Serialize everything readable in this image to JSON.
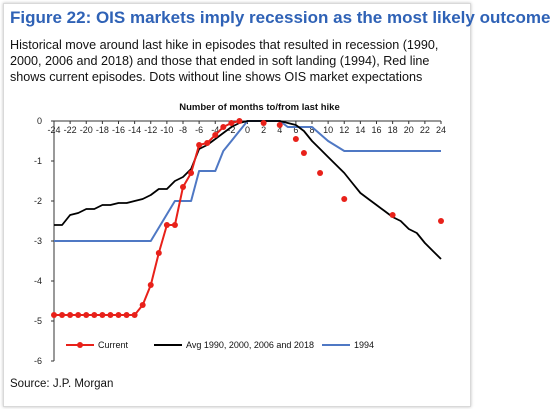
{
  "figure": {
    "title": "Figure 22: OIS markets imply recession as the most likely outcome",
    "subtitle": "Historical move around last hike in episodes that resulted in recession (1990, 2000, 2006 and 2018) and those that ended in soft landing (1994), Red line shows current episodes. Dots without line shows OIS market expectations",
    "source": "Source: J.P. Morgan"
  },
  "colors": {
    "title": "#2f62b6",
    "current": "#e8211a",
    "avg": "#000000",
    "soft": "#4f78c4"
  },
  "chart_data": {
    "type": "line",
    "title": "",
    "xlabel": "Number of months to/from last hike",
    "ylabel": "",
    "xlim": [
      -24,
      24
    ],
    "ylim": [
      -6,
      0
    ],
    "x_ticks": [
      -24,
      -22,
      -20,
      -18,
      -16,
      -14,
      -12,
      -10,
      -8,
      -6,
      -4,
      -2,
      0,
      2,
      4,
      6,
      8,
      10,
      12,
      14,
      16,
      18,
      20,
      22,
      24
    ],
    "y_ticks": [
      0,
      -1,
      -2,
      -3,
      -4,
      -5,
      -6
    ],
    "grid": false,
    "legend": "bottom",
    "series": [
      {
        "name": "Current",
        "style": "line-markers",
        "points": [
          [
            -24,
            -4.85
          ],
          [
            -23,
            -4.85
          ],
          [
            -22,
            -4.85
          ],
          [
            -21,
            -4.85
          ],
          [
            -20,
            -4.85
          ],
          [
            -19,
            -4.85
          ],
          [
            -18,
            -4.85
          ],
          [
            -17,
            -4.85
          ],
          [
            -16,
            -4.85
          ],
          [
            -15,
            -4.85
          ],
          [
            -14,
            -4.85
          ],
          [
            -13,
            -4.6
          ],
          [
            -12,
            -4.1
          ],
          [
            -11,
            -3.3
          ],
          [
            -10,
            -2.6
          ],
          [
            -9,
            -2.6
          ],
          [
            -8,
            -1.65
          ],
          [
            -7,
            -1.3
          ],
          [
            -6,
            -0.6
          ],
          [
            -5,
            -0.55
          ],
          [
            -4,
            -0.35
          ],
          [
            -3,
            -0.15
          ],
          [
            -2,
            -0.05
          ],
          [
            -1,
            0
          ]
        ]
      },
      {
        "name": "",
        "style": "markers",
        "points": [
          [
            2,
            -0.05
          ],
          [
            4,
            -0.1
          ],
          [
            6,
            -0.45
          ],
          [
            7,
            -0.8
          ],
          [
            9,
            -1.3
          ],
          [
            12,
            -1.95
          ],
          [
            18,
            -2.35
          ],
          [
            24,
            -2.5
          ]
        ]
      },
      {
        "name": "Avg 1990, 2000, 2006 and 2018",
        "style": "line",
        "points": [
          [
            -24,
            -2.6
          ],
          [
            -23,
            -2.6
          ],
          [
            -22,
            -2.35
          ],
          [
            -21,
            -2.3
          ],
          [
            -20,
            -2.2
          ],
          [
            -19,
            -2.2
          ],
          [
            -18,
            -2.1
          ],
          [
            -17,
            -2.1
          ],
          [
            -16,
            -2.05
          ],
          [
            -15,
            -2.05
          ],
          [
            -14,
            -2.0
          ],
          [
            -13,
            -1.95
          ],
          [
            -12,
            -1.85
          ],
          [
            -11,
            -1.7
          ],
          [
            -10,
            -1.7
          ],
          [
            -9,
            -1.5
          ],
          [
            -8,
            -1.4
          ],
          [
            -7,
            -1.2
          ],
          [
            -6,
            -0.7
          ],
          [
            -5,
            -0.6
          ],
          [
            -4,
            -0.45
          ],
          [
            -3,
            -0.3
          ],
          [
            -2,
            -0.15
          ],
          [
            -1,
            -0.05
          ],
          [
            0,
            0
          ],
          [
            1,
            0
          ],
          [
            2,
            0
          ],
          [
            3,
            0
          ],
          [
            4,
            0
          ],
          [
            5,
            -0.05
          ],
          [
            6,
            -0.1
          ],
          [
            7,
            -0.25
          ],
          [
            8,
            -0.5
          ],
          [
            9,
            -0.7
          ],
          [
            10,
            -0.9
          ],
          [
            11,
            -1.1
          ],
          [
            12,
            -1.3
          ],
          [
            13,
            -1.55
          ],
          [
            14,
            -1.8
          ],
          [
            15,
            -1.95
          ],
          [
            16,
            -2.1
          ],
          [
            17,
            -2.25
          ],
          [
            18,
            -2.4
          ],
          [
            19,
            -2.5
          ],
          [
            20,
            -2.7
          ],
          [
            21,
            -2.8
          ],
          [
            22,
            -3.05
          ],
          [
            23,
            -3.25
          ],
          [
            24,
            -3.45
          ]
        ]
      },
      {
        "name": "1994",
        "style": "line",
        "points": [
          [
            -24,
            -3.0
          ],
          [
            -12,
            -3.0
          ],
          [
            -9,
            -2.0
          ],
          [
            -7,
            -2.0
          ],
          [
            -6,
            -1.25
          ],
          [
            -4,
            -1.25
          ],
          [
            -3,
            -0.75
          ],
          [
            -2,
            -0.5
          ],
          [
            -1,
            -0.25
          ],
          [
            0,
            0
          ],
          [
            4,
            0
          ],
          [
            5,
            -0.15
          ],
          [
            8,
            -0.15
          ],
          [
            10,
            -0.5
          ],
          [
            12,
            -0.75
          ],
          [
            24,
            -0.75
          ]
        ]
      }
    ]
  }
}
